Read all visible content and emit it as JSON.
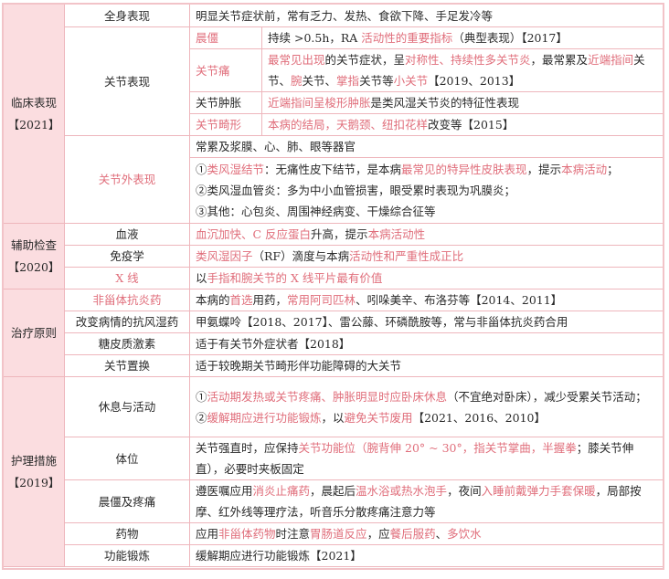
{
  "colors": {
    "highlight": "#e06e7b",
    "section_bg": "#fbdde0",
    "border": "#eeb6bc"
  },
  "clinical": {
    "label": "临床表现",
    "year": "【2021】",
    "general": {
      "label": "全身表现",
      "text": [
        [
          "明显关节症状前，常有乏力、发热、食欲下降、手足发冷等",
          0
        ]
      ]
    },
    "joint": {
      "label": "关节表现",
      "items": [
        {
          "label": "晨僵",
          "hl": 1,
          "text": [
            [
              "持续 >0.5h，RA ",
              0
            ],
            [
              "活动性的重要指标",
              1
            ],
            [
              "（典型表现）【2017】",
              0
            ]
          ]
        },
        {
          "label": "关节痛",
          "hl": 1,
          "text": [
            [
              "最常见出现",
              1
            ],
            [
              "的关节症状，呈",
              0
            ],
            [
              "对称性、持续性多关节炎",
              1
            ],
            [
              "，最常累及",
              0
            ],
            [
              "近端指间",
              1
            ],
            [
              "关节、",
              0
            ],
            [
              "腕",
              1
            ],
            [
              "关节、",
              0
            ],
            [
              "掌指",
              1
            ],
            [
              "关节等",
              0
            ],
            [
              "小关节",
              1
            ],
            [
              "【2019、2013】",
              0
            ]
          ]
        },
        {
          "label": "关节肿胀",
          "hl": 0,
          "text": [
            [
              "近端指间呈梭形肿胀",
              1
            ],
            [
              "是类风湿关节炎的特征性表现",
              0
            ]
          ]
        },
        {
          "label": "关节畸形",
          "hl": 1,
          "text": [
            [
              "本病的结局，天鹅颈、纽扣花样",
              1
            ],
            [
              "改变等【2015】",
              0
            ]
          ]
        }
      ]
    },
    "extra": {
      "label": "关节外表现",
      "lines": [
        [
          [
            "常累及浆膜、心、肺、眼等器官",
            0
          ]
        ],
        [
          [
            "①",
            0
          ],
          [
            "类风湿结节",
            1
          ],
          [
            "：无痛性皮下结节，是本病",
            0
          ],
          [
            "最常见的特异性皮肤表现",
            1
          ],
          [
            "，提示",
            0
          ],
          [
            "本病活动",
            1
          ],
          [
            "；",
            0
          ]
        ],
        [
          [
            "②类风湿血管炎：多为中小血管损害，眼受累时表现为巩膜炎；",
            0
          ]
        ],
        [
          [
            "③其他：心包炎、周围神经病变、干燥综合征等",
            0
          ]
        ]
      ]
    }
  },
  "auxiliary": {
    "label": "辅助检查",
    "year": "【2020】",
    "rows": [
      {
        "label": "血液",
        "hl": 0,
        "text": [
          [
            "血沉加快、C 反应蛋白",
            1
          ],
          [
            "升高，提示",
            0
          ],
          [
            "本病活动性",
            1
          ]
        ]
      },
      {
        "label": "免疫学",
        "hl": 0,
        "text": [
          [
            "类风湿因子",
            1
          ],
          [
            "（RF）滴度与本病",
            0
          ],
          [
            "活动性和严重性成正比",
            1
          ]
        ]
      },
      {
        "label": "X 线",
        "hl": 1,
        "text": [
          [
            "以",
            0
          ],
          [
            "手指和腕关节的 X 线平片最有价值",
            1
          ]
        ]
      }
    ]
  },
  "treatment": {
    "label": "治疗原则",
    "rows": [
      {
        "label": "非甾体抗炎药",
        "hl": 1,
        "text": [
          [
            "本病的",
            0
          ],
          [
            "首选",
            1
          ],
          [
            "用药，",
            0
          ],
          [
            "常用阿司匹林",
            1
          ],
          [
            "、吲哚美辛、布洛芬等【2014、2011】",
            0
          ]
        ]
      },
      {
        "label": "改变病情的抗风湿药",
        "hl": 0,
        "text": [
          [
            "甲氨蝶呤【2018、2017】、雷公藤、环磷酰胺等，常与非甾体抗炎药合用",
            0
          ]
        ]
      },
      {
        "label": "糖皮质激素",
        "hl": 0,
        "text": [
          [
            "适于有关节外症状者【2018】",
            0
          ]
        ]
      },
      {
        "label": "关节置换",
        "hl": 0,
        "text": [
          [
            "适于较晚期关节畸形伴功能障碍的大关节",
            0
          ]
        ]
      }
    ]
  },
  "nursing": {
    "label": "护理措施",
    "year": "【2019】",
    "rows": [
      {
        "label": "休息与活动",
        "hl": 0,
        "text": [
          [
            "①",
            0
          ],
          [
            "活动期发热或关节疼痛、肿胀明显时应卧床休息",
            1
          ],
          [
            "（不宜绝对卧床），减少受累关节活动；",
            0
          ],
          [
            "\n",
            0
          ],
          [
            "②",
            0
          ],
          [
            "缓解期应进行功能锻炼",
            1
          ],
          [
            "，以",
            0
          ],
          [
            "避免关节废用",
            1
          ],
          [
            "【2021、2016、2010】",
            0
          ]
        ]
      },
      {
        "label": "体位",
        "hl": 0,
        "text": [
          [
            "关节强直时，应保持",
            0
          ],
          [
            "关节功能位（腕背伸 20° ~ 30°，指关节掌曲，半握拳",
            1
          ],
          [
            "；膝关节伸直），必要时夹板固定",
            0
          ]
        ]
      },
      {
        "label": "晨僵及疼痛",
        "hl": 0,
        "text": [
          [
            "遵医嘱应用",
            0
          ],
          [
            "消炎止痛药",
            1
          ],
          [
            "，晨起后",
            0
          ],
          [
            "温水浴或热水泡手",
            1
          ],
          [
            "，夜间",
            0
          ],
          [
            "入睡前戴弹力手套保暖",
            1
          ],
          [
            "，局部按摩、红外线等理疗法，听音乐分散疼痛注意力等",
            0
          ]
        ]
      },
      {
        "label": "药物",
        "hl": 0,
        "text": [
          [
            "应用",
            0
          ],
          [
            "非甾体药物",
            1
          ],
          [
            "时注意",
            0
          ],
          [
            "胃肠道反应",
            1
          ],
          [
            "，应",
            0
          ],
          [
            "餐后服药",
            1
          ],
          [
            "、",
            0
          ],
          [
            "多饮水",
            1
          ]
        ]
      },
      {
        "label": "功能锻炼",
        "hl": 0,
        "text": [
          [
            "缓解期应进行功能锻炼【2021】",
            0
          ]
        ]
      }
    ]
  }
}
